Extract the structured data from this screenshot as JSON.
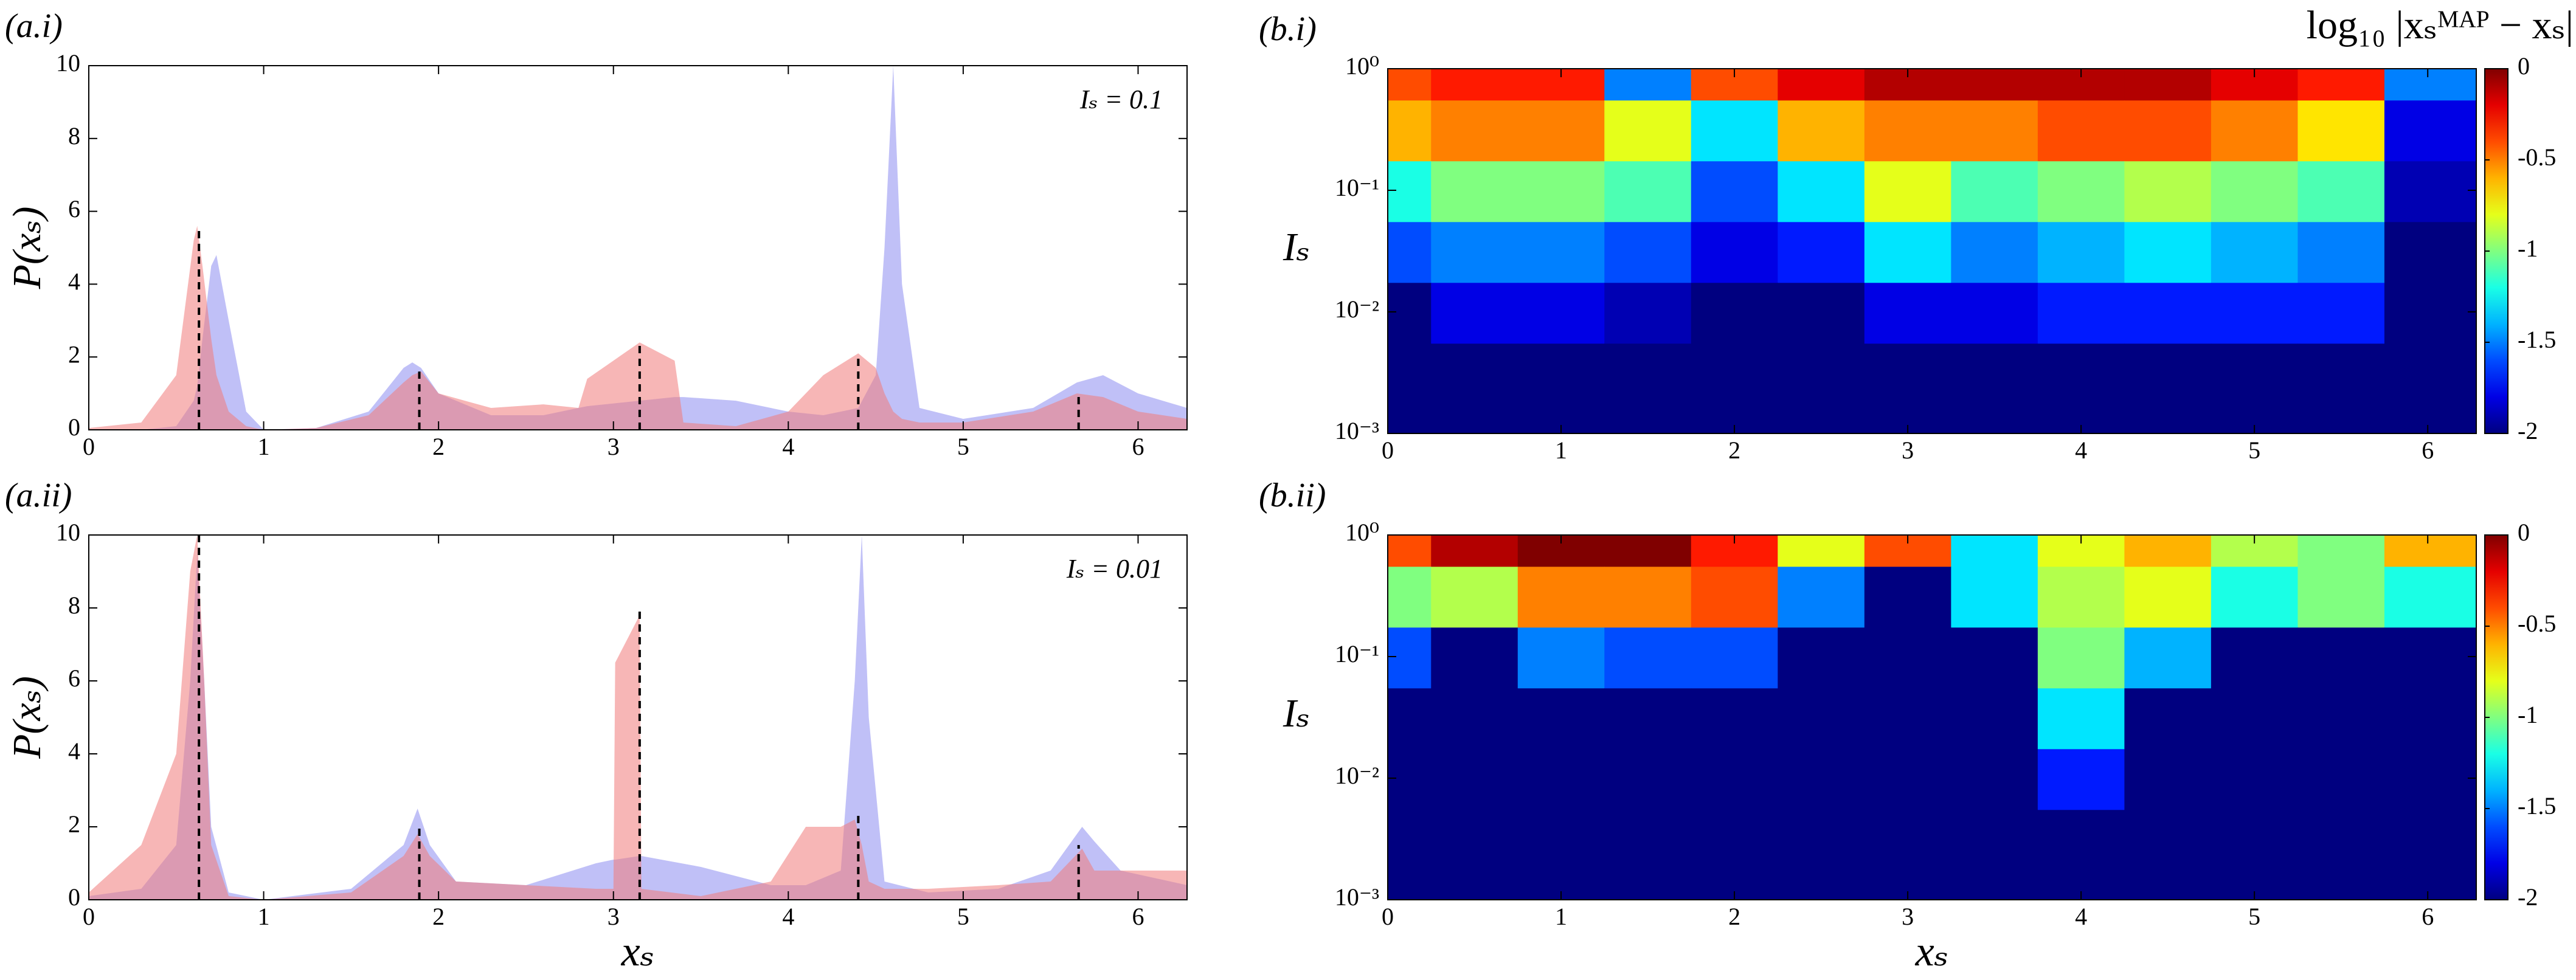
{
  "chart_data": [
    {
      "type": "area",
      "panel_label": "(a.i)",
      "annotation": "Iₛ = 0.1",
      "ylabel": "P(xₛ)",
      "x": [
        0,
        0.3,
        0.5,
        0.6,
        0.62,
        0.65,
        0.7,
        0.73,
        0.8,
        0.9,
        1.0,
        1.3,
        1.6,
        1.8,
        1.85,
        1.9,
        2.0,
        2.3,
        2.6,
        2.8,
        2.85,
        3.15,
        3.35,
        3.4,
        3.7,
        4.0,
        4.2,
        4.4,
        4.5,
        4.55,
        4.6,
        4.65,
        4.75,
        5.0,
        5.4,
        5.65,
        5.8,
        6.0,
        6.28
      ],
      "series": [
        {
          "color": "#8c8cf0",
          "values": [
            0,
            0,
            0.1,
            0.8,
            1.2,
            2.5,
            4.5,
            4.8,
            3.0,
            0.5,
            0,
            0.05,
            0.5,
            1.7,
            1.85,
            1.7,
            1.0,
            0.4,
            0.4,
            0.6,
            0.65,
            0.8,
            0.9,
            0.9,
            0.8,
            0.5,
            0.4,
            0.6,
            1.5,
            5,
            10,
            4,
            0.6,
            0.3,
            0.6,
            1.3,
            1.5,
            1.0,
            0.6
          ]
        },
        {
          "color": "#f07a7a",
          "values": [
            0.05,
            0.2,
            1.5,
            5.2,
            5.6,
            4.5,
            2.5,
            1.5,
            0.5,
            0.1,
            0,
            0.05,
            0.4,
            1.3,
            1.5,
            1.6,
            1.0,
            0.6,
            0.7,
            0.6,
            1.4,
            2.4,
            1.9,
            0.2,
            0.1,
            0.5,
            1.5,
            2.1,
            1.7,
            1.0,
            0.5,
            0.3,
            0.2,
            0.2,
            0.5,
            1.0,
            0.9,
            0.5,
            0.3
          ]
        }
      ],
      "markers": {
        "x": [
          0.63,
          1.89,
          3.15,
          4.4,
          5.66
        ],
        "values": [
          5.6,
          1.6,
          2.4,
          2.1,
          1.0
        ]
      },
      "xlim": [
        0,
        6.28
      ],
      "xticks": [
        0,
        1,
        2,
        3,
        4,
        5,
        6
      ],
      "ylim": [
        0,
        10
      ],
      "yticks": [
        0,
        2,
        4,
        6,
        8,
        10
      ]
    },
    {
      "type": "heatmap",
      "panel_label": "(b.i)",
      "ylabel": "Iₛ",
      "colorbar_label": "log₁₀ |xₛᴹᴬᴾ − xₛ|",
      "x": [
        0,
        0.5,
        1,
        1.5,
        2,
        2.5,
        3,
        3.5,
        4,
        4.5,
        5,
        5.5,
        6
      ],
      "y": [
        1,
        0.3,
        0.1,
        0.03,
        0.01,
        0.003,
        0.001
      ],
      "z": [
        [
          -0.4,
          -0.3,
          -0.3,
          -1.5,
          -0.4,
          -0.2,
          -0.1,
          -0.1,
          -0.1,
          -0.1,
          -0.2,
          -0.3,
          -1.5
        ],
        [
          -0.6,
          -0.5,
          -0.5,
          -0.8,
          -1.3,
          -0.6,
          -0.5,
          -0.5,
          -0.4,
          -0.4,
          -0.5,
          -0.7,
          -1.8
        ],
        [
          -1.2,
          -1.0,
          -1.0,
          -1.1,
          -1.6,
          -1.3,
          -0.8,
          -1.1,
          -1.0,
          -0.9,
          -1.0,
          -1.1,
          -1.9
        ],
        [
          -1.6,
          -1.5,
          -1.5,
          -1.6,
          -1.8,
          -1.7,
          -1.3,
          -1.5,
          -1.4,
          -1.3,
          -1.4,
          -1.5,
          -2
        ],
        [
          -2,
          -1.8,
          -1.8,
          -1.9,
          -2,
          -2,
          -1.8,
          -1.8,
          -1.7,
          -1.7,
          -1.7,
          -1.7,
          -2
        ],
        [
          -2,
          -2,
          -2,
          -2,
          -2,
          -2,
          -2,
          -2,
          -2,
          -2,
          -2,
          -2,
          -2
        ],
        [
          -2,
          -2,
          -2,
          -2,
          -2,
          -2,
          -2,
          -2,
          -2,
          -2,
          -2,
          -2,
          -2
        ]
      ],
      "xlim": [
        0,
        6.28
      ],
      "xticks": [
        0,
        1,
        2,
        3,
        4,
        5,
        6
      ],
      "ylim": [
        0.001,
        1
      ],
      "log_y": true,
      "yticks": [
        {
          "value": 0.001,
          "label": "10⁻³"
        },
        {
          "value": 0.01,
          "label": "10⁻²"
        },
        {
          "value": 0.1,
          "label": "10⁻¹"
        },
        {
          "value": 1,
          "label": "10⁰"
        }
      ],
      "zlim": [
        -2,
        0
      ],
      "zticks": [
        0,
        -0.5,
        -1,
        -1.5,
        -2
      ]
    },
    {
      "type": "area",
      "panel_label": "(a.ii)",
      "annotation": "Iₛ = 0.01",
      "ylabel": "P(xₛ)",
      "xlabel": "xₛ",
      "x": [
        0,
        0.3,
        0.5,
        0.58,
        0.62,
        0.66,
        0.7,
        0.8,
        1.0,
        1.5,
        1.8,
        1.88,
        1.95,
        2.1,
        2.5,
        2.9,
        3.0,
        3.01,
        3.15,
        3.16,
        3.5,
        3.9,
        4.1,
        4.3,
        4.38,
        4.42,
        4.46,
        4.55,
        4.8,
        5.2,
        5.5,
        5.68,
        5.75,
        5.9,
        6.28
      ],
      "series": [
        {
          "color": "#8c8cf0",
          "values": [
            0.1,
            0.3,
            1.5,
            6,
            9.5,
            6,
            2,
            0.2,
            0,
            0.3,
            1.5,
            2.5,
            1.5,
            0.5,
            0.4,
            1,
            1.1,
            1.1,
            1.2,
            1.2,
            0.9,
            0.4,
            0.4,
            0.8,
            6,
            10,
            5,
            0.5,
            0.2,
            0.3,
            0.8,
            2.0,
            1.6,
            0.8,
            0.4
          ]
        },
        {
          "color": "#f07a7a",
          "values": [
            0.2,
            1.5,
            4,
            9,
            10,
            6,
            1.5,
            0.1,
            0,
            0.2,
            1.2,
            1.8,
            1.2,
            0.5,
            0.4,
            0.3,
            0.3,
            6.5,
            7.8,
            0.3,
            0.1,
            0.5,
            2,
            2.0,
            2.2,
            1.5,
            0.5,
            0.3,
            0.3,
            0.4,
            0.5,
            1.4,
            0.8,
            0.8,
            0.8
          ]
        }
      ],
      "markers": {
        "x": [
          0.63,
          1.89,
          3.15,
          4.4,
          5.66
        ],
        "values": [
          10,
          2,
          7.9,
          2.3,
          1.5
        ]
      },
      "xlim": [
        0,
        6.28
      ],
      "xticks": [
        0,
        1,
        2,
        3,
        4,
        5,
        6
      ],
      "ylim": [
        0,
        10
      ],
      "yticks": [
        0,
        2,
        4,
        6,
        8,
        10
      ]
    },
    {
      "type": "heatmap",
      "panel_label": "(b.ii)",
      "ylabel": "Iₛ",
      "xlabel": "xₛ",
      "x": [
        0,
        0.5,
        1,
        1.5,
        2,
        2.5,
        3,
        3.5,
        4,
        4.5,
        5,
        5.5,
        6
      ],
      "y": [
        1,
        0.3,
        0.1,
        0.03,
        0.01,
        0.003,
        0.001
      ],
      "z": [
        [
          -0.4,
          -0.1,
          0,
          0,
          -0.3,
          -0.8,
          -0.4,
          -1.3,
          -0.8,
          -0.6,
          -0.9,
          -1.0,
          -0.6
        ],
        [
          -1.0,
          -0.9,
          -0.5,
          -0.5,
          -0.4,
          -1.5,
          -2,
          -1.3,
          -0.9,
          -0.8,
          -1.2,
          -1.0,
          -1.2
        ],
        [
          -1.6,
          -2,
          -1.5,
          -1.6,
          -1.6,
          -2,
          -2,
          -2,
          -1.0,
          -1.4,
          -2,
          -2,
          -2
        ],
        [
          -2,
          -2,
          -2,
          -2,
          -2,
          -2,
          -2,
          -2,
          -1.3,
          -2,
          -2,
          -2,
          -2
        ],
        [
          -2,
          -2,
          -2,
          -2,
          -2,
          -2,
          -2,
          -2,
          -1.7,
          -2,
          -2,
          -2,
          -2
        ],
        [
          -2,
          -2,
          -2,
          -2,
          -2,
          -2,
          -2,
          -2,
          -2,
          -2,
          -2,
          -2,
          -2
        ],
        [
          -2,
          -2,
          -2,
          -2,
          -2,
          -2,
          -2,
          -2,
          -2,
          -2,
          -2,
          -2,
          -2
        ]
      ],
      "xlim": [
        0,
        6.28
      ],
      "xticks": [
        0,
        1,
        2,
        3,
        4,
        5,
        6
      ],
      "ylim": [
        0.001,
        1
      ],
      "log_y": true,
      "yticks": [
        {
          "value": 0.001,
          "label": "10⁻³"
        },
        {
          "value": 0.01,
          "label": "10⁻²"
        },
        {
          "value": 0.1,
          "label": "10⁻¹"
        },
        {
          "value": 1,
          "label": "10⁰"
        }
      ],
      "zlim": [
        -2,
        0
      ],
      "zticks": [
        0,
        -0.5,
        -1,
        -1.5,
        -2
      ]
    }
  ]
}
